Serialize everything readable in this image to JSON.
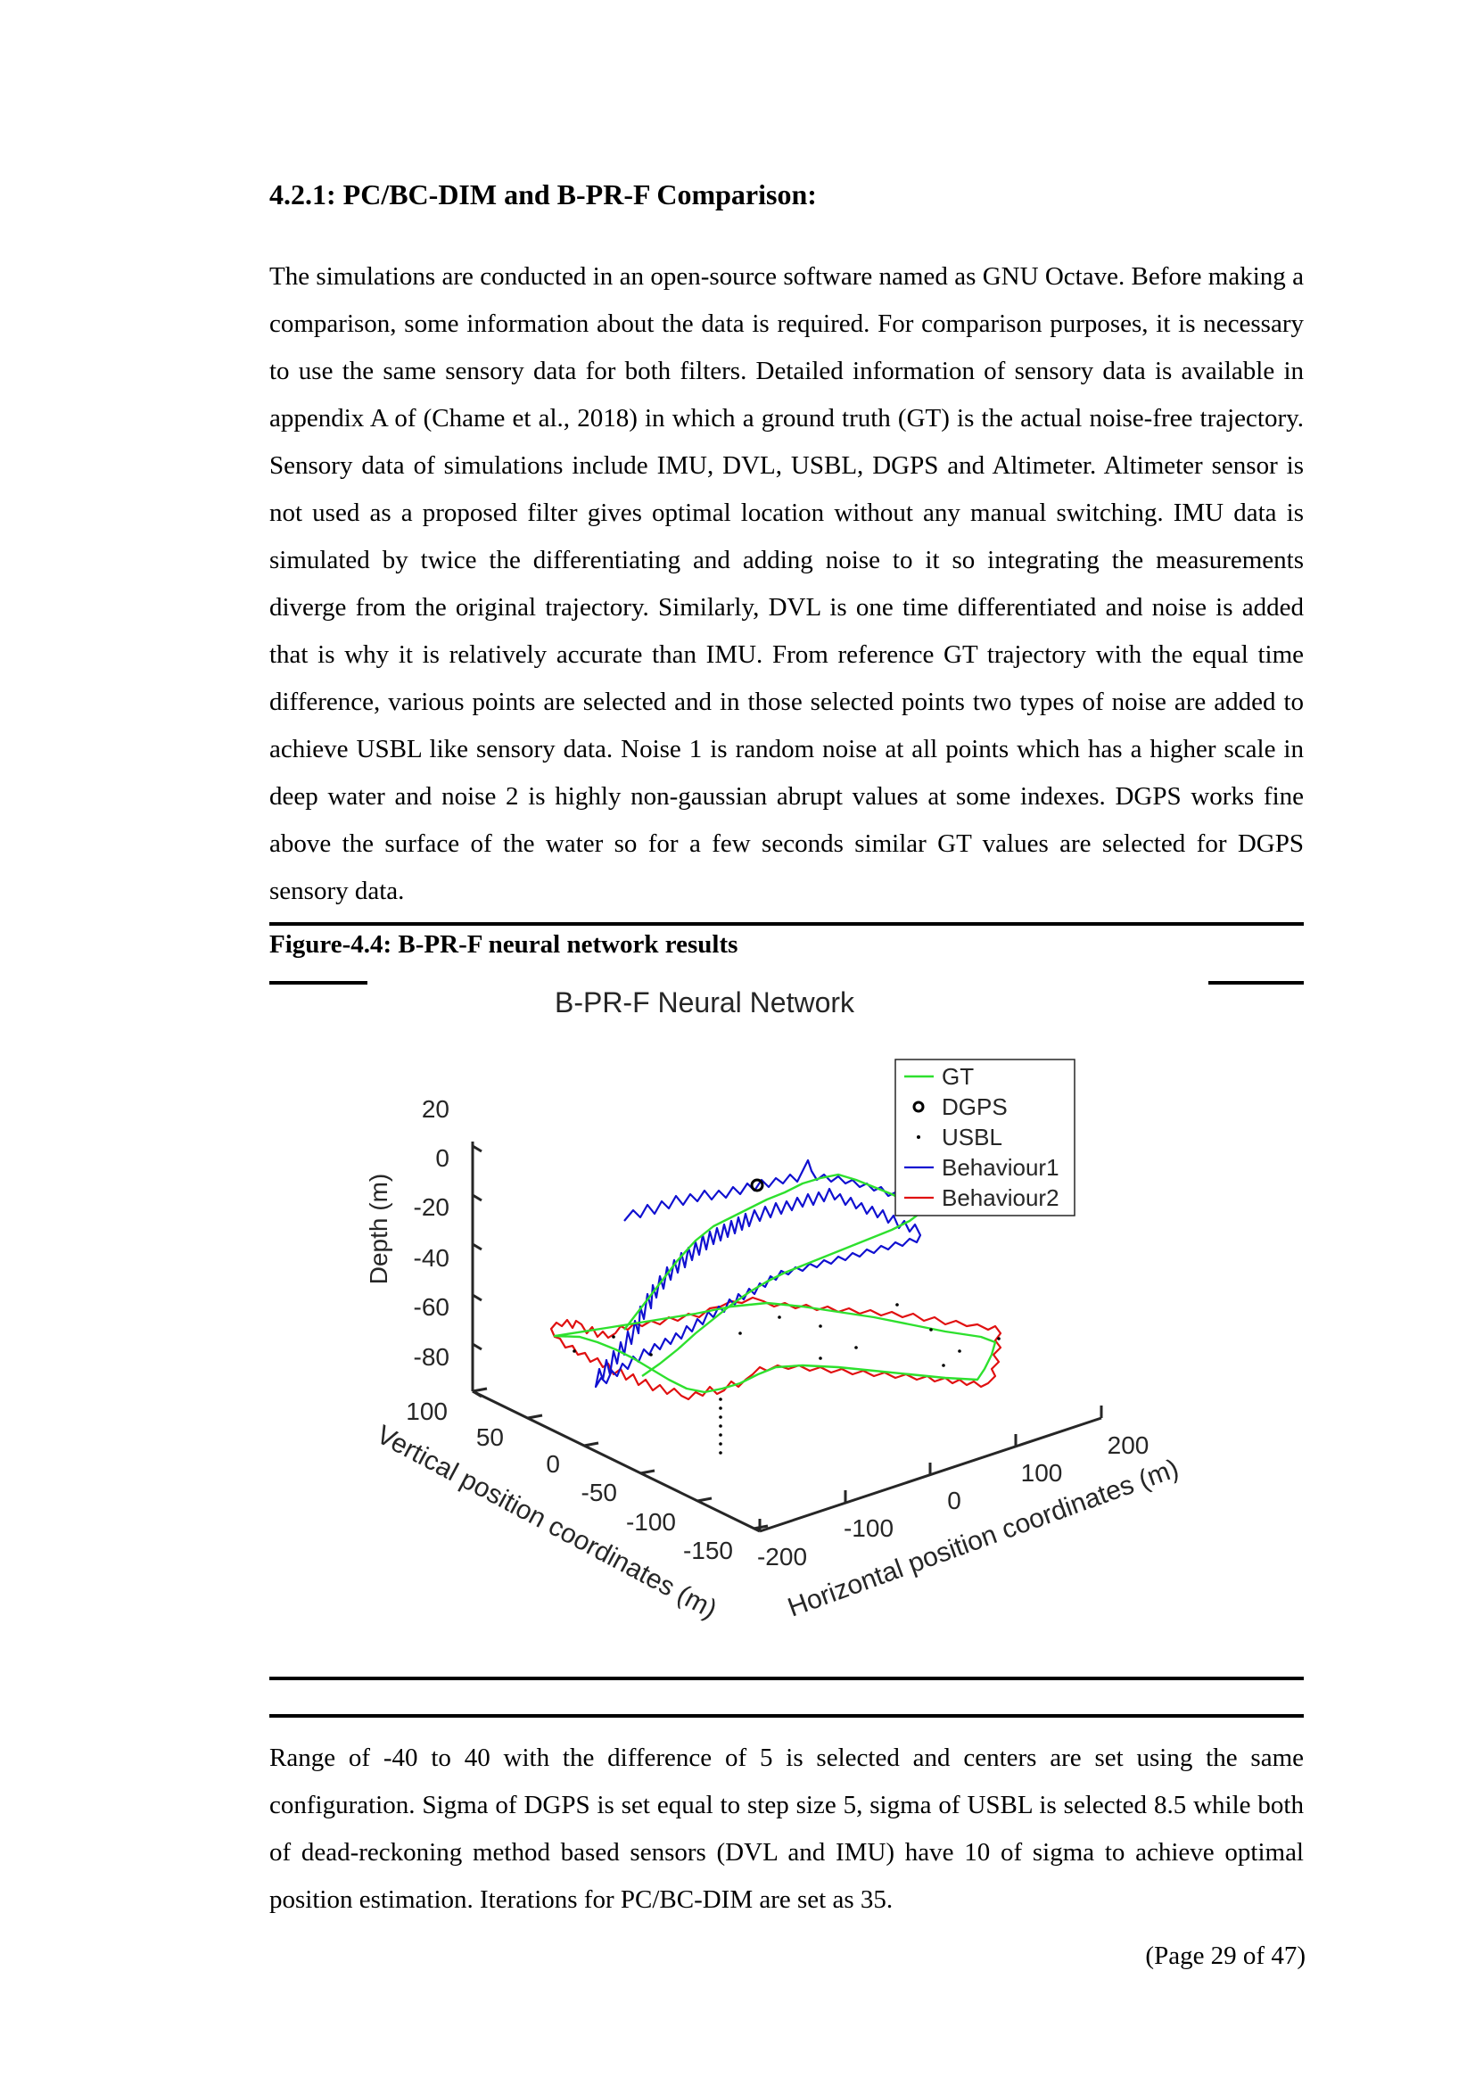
{
  "section_heading": "4.2.1: PC/BC-DIM and B-PR-F Comparison:",
  "paragraph_1": "The simulations are conducted in an open-source software named as GNU Octave. Before making a comparison, some information about the data is required. For comparison purposes, it is necessary to use the same sensory data for both filters. Detailed information of sensory data is available in appendix A of (Chame et al., 2018) in which a ground truth (GT) is the actual noise-free trajectory. Sensory data of simulations include IMU, DVL, USBL, DGPS and Altimeter. Altimeter sensor is not used as a proposed filter gives optimal location without any manual switching. IMU data is simulated by twice the differentiating and adding noise to it so integrating the measurements diverge from the original trajectory. Similarly, DVL is one time differentiated and noise is added that is why it is relatively accurate than IMU. From reference GT trajectory with the equal time difference, various points are selected and in those selected points two types of noise are added to achieve USBL like sensory data. Noise 1 is random noise at all points which has a higher scale in deep water and noise 2 is highly non-gaussian abrupt values at some indexes. DGPS works fine above the surface of the water so for a few seconds similar GT values are selected for DGPS sensory data.",
  "figure_caption": "Figure-4.4: B-PR-F neural network results",
  "paragraph_2": "Range of -40 to 40 with the difference of 5 is selected and centers are set using the same configuration. Sigma of DGPS is set equal to step size 5, sigma of USBL is selected 8.5 while both of dead-reckoning method based sensors (DVL and IMU) have 10 of sigma to achieve optimal position estimation. Iterations for PC/BC-DIM are set as 35.",
  "page_footer": "(Page 29 of 47)",
  "colors": {
    "gt": "#2ee02e",
    "behaviour1": "#1010d0",
    "behaviour2": "#e01010",
    "dgps": "#000000",
    "usbl": "#000000"
  },
  "chart_data": {
    "type": "line3d",
    "title": "B-PR-F Neural Network",
    "zlabel": "Depth (m)",
    "ylabel": "Vertical position coordinates (m)",
    "xlabel": "Horizontal position coordinates (m)",
    "z_ticks": [
      "20",
      "0",
      "-20",
      "-40",
      "-60",
      "-80"
    ],
    "y_ticks": [
      "100",
      "50",
      "0",
      "-50",
      "-100",
      "-150"
    ],
    "x_ticks": [
      "-200",
      "-100",
      "0",
      "100",
      "200"
    ],
    "legend": [
      "GT",
      "DGPS",
      "USBL",
      "Behaviour1",
      "Behaviour2"
    ],
    "legend_position": "top-right",
    "series_notes": "3D trajectories: GT ground-truth loop, Behaviour1 (blue) upper noisy loop, Behaviour2 (red) lower noisy loop, USBL scattered dots, DGPS single circle"
  }
}
